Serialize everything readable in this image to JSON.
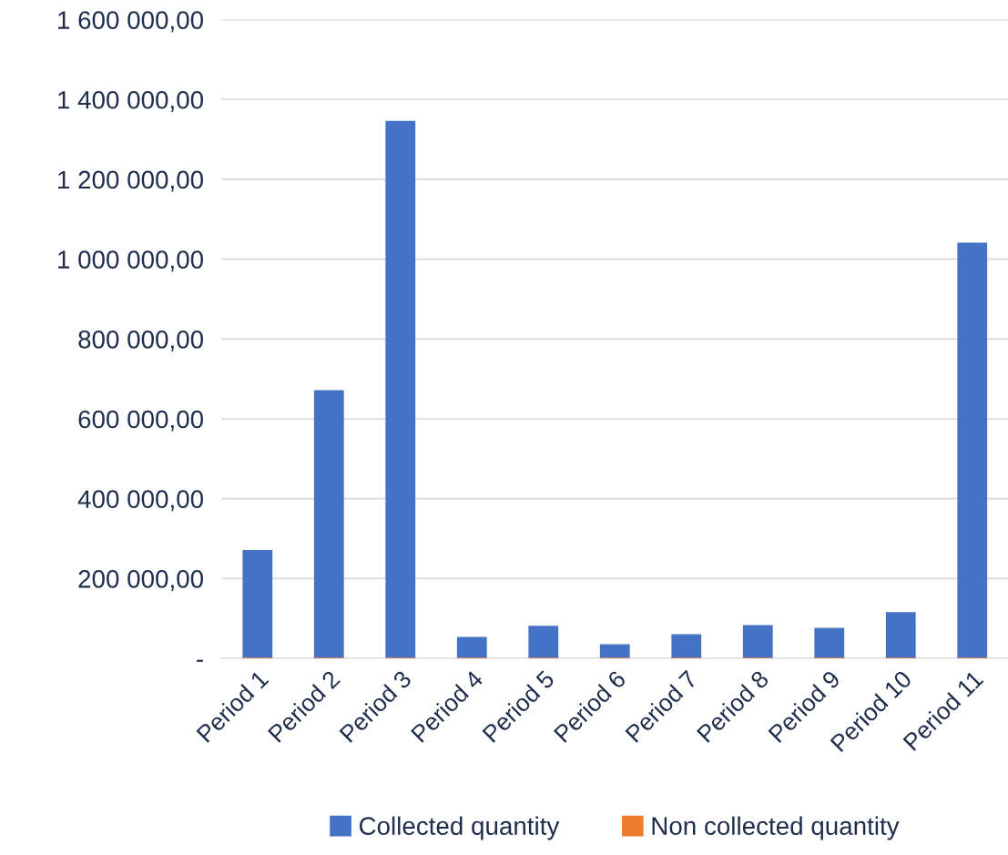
{
  "chart_data": {
    "type": "bar",
    "categories": [
      "Period 1",
      "Period 2",
      "Period 3",
      "Period 4",
      "Period 5",
      "Period 6",
      "Period 7",
      "Period 8",
      "Period 9",
      "Period 10",
      "Period 11"
    ],
    "series": [
      {
        "name": "Collected quantity",
        "color": "#4472c4",
        "values": [
          270000,
          670000,
          1345000,
          52000,
          80000,
          34000,
          59000,
          82000,
          75000,
          114000,
          1040000
        ]
      },
      {
        "name": "Non collected quantity",
        "color": "#ed7d31",
        "values": [
          0,
          0,
          0,
          0,
          0,
          0,
          0,
          0,
          0,
          0,
          0
        ]
      }
    ],
    "ylim": [
      0,
      1600000
    ],
    "yticks": [
      {
        "value": 0,
        "label": "-"
      },
      {
        "value": 200000,
        "label": "200 000,00"
      },
      {
        "value": 400000,
        "label": "400 000,00"
      },
      {
        "value": 600000,
        "label": "600 000,00"
      },
      {
        "value": 800000,
        "label": "800 000,00"
      },
      {
        "value": 1000000,
        "label": "1 000 000,00"
      },
      {
        "value": 1200000,
        "label": "1 200 000,00"
      },
      {
        "value": 1400000,
        "label": "1 400 000,00"
      },
      {
        "value": 1600000,
        "label": "1 600 000,00"
      }
    ],
    "grid": "y",
    "legend": "bottom"
  }
}
